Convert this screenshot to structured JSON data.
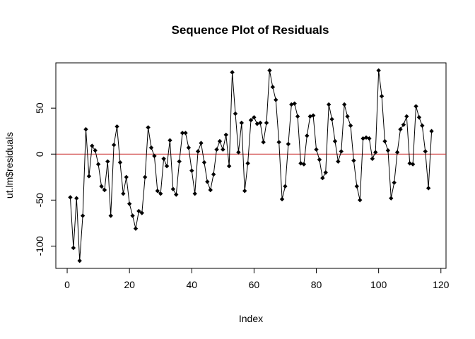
{
  "chart_data": {
    "type": "line",
    "title": "Sequence Plot of Residuals",
    "xlabel": "Index",
    "ylabel": "ut.lm$residuals",
    "xlim": [
      1,
      117
    ],
    "ylim": [
      -116,
      91
    ],
    "x_ticks": [
      0,
      20,
      40,
      60,
      80,
      100,
      120
    ],
    "y_ticks": [
      -100,
      -50,
      0,
      50
    ],
    "grid": false,
    "legend": "none",
    "reference_line": {
      "y": 0,
      "color": "#cc3333"
    },
    "series_color": "#000000",
    "points": "filled-diamond",
    "y": [
      -47,
      -102,
      -48,
      -116,
      -67,
      27,
      -24,
      9,
      4,
      -11,
      -35,
      -39,
      -8,
      -67,
      10,
      30,
      -9,
      -43,
      -25,
      -54,
      -67,
      -81,
      -62,
      -64,
      -25,
      29,
      7,
      -2,
      -40,
      -43,
      -5,
      -13,
      15,
      -38,
      -44,
      -8,
      23,
      23,
      7,
      -18,
      -43,
      3,
      12,
      -9,
      -30,
      -39,
      -22,
      5,
      14,
      5,
      21,
      -13,
      89,
      44,
      2,
      34,
      -40,
      -10,
      37,
      40,
      33,
      34,
      13,
      34,
      91,
      73,
      59,
      13,
      -49,
      -35,
      11,
      54,
      55,
      41,
      -10,
      -11,
      20,
      41,
      42,
      5,
      -6,
      -26,
      -20,
      54,
      38,
      14,
      -8,
      3,
      54,
      41,
      31,
      -7,
      -35,
      -50,
      17,
      18,
      17,
      -5,
      2,
      91,
      63,
      14,
      4,
      -48,
      -31,
      2,
      27,
      32,
      41,
      -10,
      -11,
      52,
      40,
      31,
      3,
      -37,
      25
    ]
  }
}
